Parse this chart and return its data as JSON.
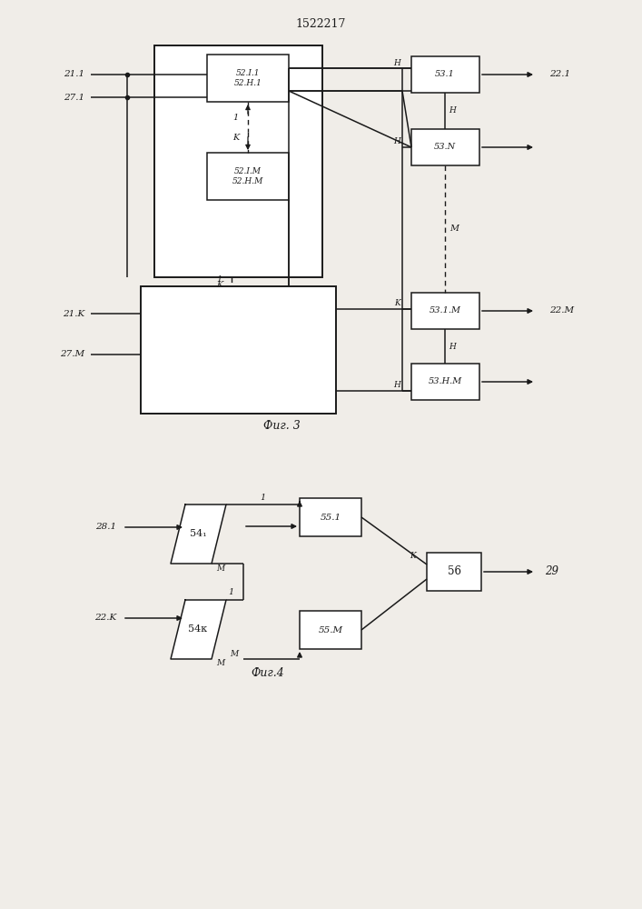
{
  "title": "1522217",
  "fig3_label": "Фиг. 3",
  "fig4_label": "Фиг.4",
  "bg": "#f0ede8",
  "lc": "#1a1a1a"
}
